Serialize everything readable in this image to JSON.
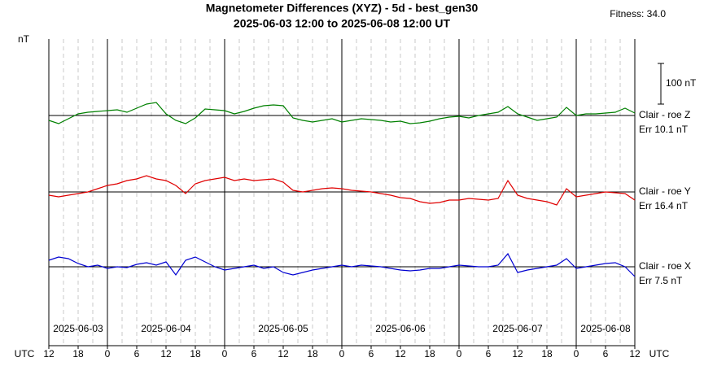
{
  "chart_data": {
    "type": "line",
    "title": "Magnetometer Differences (XYZ) - 5d - best_gen30",
    "subtitle": "2025-06-03 12:00 to 2025-06-08 12:00 UT",
    "annotation": "Fitness: 34.0",
    "ylabel": "nT",
    "x_unit": "UTC",
    "scale_bar": {
      "value": 100,
      "label": "100 nT"
    },
    "xlim": [
      0,
      120
    ],
    "xticks": [
      {
        "value": 0,
        "label": "12"
      },
      {
        "value": 6,
        "label": "18"
      },
      {
        "value": 12,
        "label": "0"
      },
      {
        "value": 18,
        "label": "6"
      },
      {
        "value": 24,
        "label": "12"
      },
      {
        "value": 30,
        "label": "18"
      },
      {
        "value": 36,
        "label": "0"
      },
      {
        "value": 42,
        "label": "6"
      },
      {
        "value": 48,
        "label": "12"
      },
      {
        "value": 54,
        "label": "18"
      },
      {
        "value": 60,
        "label": "0"
      },
      {
        "value": 66,
        "label": "6"
      },
      {
        "value": 72,
        "label": "12"
      },
      {
        "value": 78,
        "label": "18"
      },
      {
        "value": 84,
        "label": "0"
      },
      {
        "value": 90,
        "label": "6"
      },
      {
        "value": 96,
        "label": "12"
      },
      {
        "value": 102,
        "label": "18"
      },
      {
        "value": 108,
        "label": "0"
      },
      {
        "value": 114,
        "label": "6"
      },
      {
        "value": 120,
        "label": "12"
      }
    ],
    "major_xgrid": [
      12,
      36,
      60,
      84,
      108
    ],
    "minor_xgrid": [
      3,
      6,
      9,
      15,
      18,
      21,
      24,
      27,
      30,
      33,
      39,
      42,
      45,
      48,
      51,
      54,
      57,
      63,
      66,
      69,
      72,
      75,
      78,
      81,
      87,
      90,
      93,
      96,
      99,
      102,
      105,
      111,
      114,
      117
    ],
    "days": [
      "2025-06-03",
      "2025-06-04",
      "2025-06-05",
      "2025-06-06",
      "2025-06-07",
      "2025-06-08"
    ],
    "x": [
      0,
      2,
      4,
      6,
      8,
      10,
      12,
      14,
      16,
      18,
      20,
      22,
      24,
      26,
      28,
      30,
      32,
      34,
      36,
      38,
      40,
      42,
      44,
      46,
      48,
      50,
      52,
      54,
      56,
      58,
      60,
      62,
      64,
      66,
      68,
      70,
      72,
      74,
      76,
      78,
      80,
      82,
      84,
      86,
      88,
      90,
      92,
      94,
      96,
      98,
      100,
      102,
      104,
      106,
      108,
      110,
      112,
      114,
      116,
      118,
      120
    ],
    "series": [
      {
        "name": "Clair - roe Z",
        "error_label": "Err 10.1 nT",
        "color": "#008000",
        "values": [
          -12,
          -20,
          -8,
          4,
          8,
          10,
          12,
          14,
          8,
          18,
          28,
          32,
          4,
          -12,
          -20,
          -6,
          16,
          14,
          12,
          4,
          10,
          18,
          24,
          26,
          24,
          -6,
          -12,
          -16,
          -12,
          -8,
          -16,
          -12,
          -8,
          -10,
          -12,
          -16,
          -14,
          -20,
          -18,
          -14,
          -8,
          -4,
          -2,
          -6,
          0,
          4,
          8,
          22,
          4,
          -4,
          -12,
          -8,
          -4,
          20,
          0,
          4,
          4,
          6,
          8,
          18,
          6
        ]
      },
      {
        "name": "Clair - roe Y",
        "error_label": "Err 16.4 nT",
        "color": "#e00000",
        "values": [
          -8,
          -12,
          -8,
          -4,
          0,
          8,
          16,
          20,
          28,
          32,
          40,
          32,
          28,
          16,
          -4,
          20,
          28,
          32,
          36,
          28,
          32,
          28,
          30,
          32,
          24,
          4,
          0,
          4,
          8,
          10,
          8,
          4,
          2,
          0,
          -4,
          -8,
          -14,
          -16,
          -24,
          -28,
          -26,
          -20,
          -20,
          -16,
          -18,
          -20,
          -16,
          28,
          -8,
          -16,
          -20,
          -24,
          -32,
          8,
          -12,
          -8,
          -4,
          0,
          -2,
          -4,
          -20
        ]
      },
      {
        "name": "Clair - roe X",
        "error_label": "Err 7.5 nT",
        "color": "#0000d0",
        "values": [
          16,
          24,
          20,
          8,
          0,
          4,
          -4,
          0,
          -2,
          6,
          10,
          4,
          12,
          -20,
          16,
          24,
          12,
          0,
          -8,
          -4,
          0,
          4,
          -4,
          0,
          -14,
          -20,
          -14,
          -8,
          -4,
          0,
          4,
          0,
          4,
          2,
          0,
          -4,
          -8,
          -10,
          -8,
          -4,
          -4,
          0,
          4,
          2,
          0,
          0,
          4,
          32,
          -14,
          -8,
          -4,
          0,
          4,
          20,
          -4,
          0,
          4,
          8,
          10,
          0,
          -24
        ]
      }
    ]
  }
}
